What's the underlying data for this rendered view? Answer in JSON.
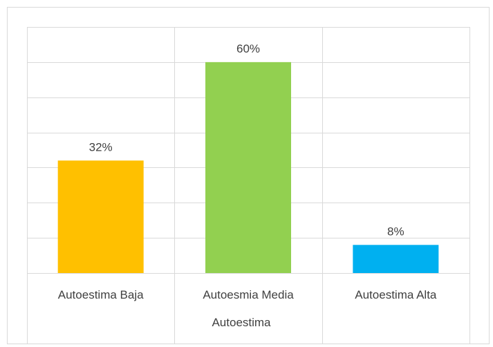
{
  "colors": {
    "gridline": "#d9d9d9",
    "frame_border": "#d9d9d9",
    "text": "#404040",
    "bar_colors": [
      "#ffc000",
      "#92d050",
      "#00b0f0"
    ]
  },
  "chart_data": {
    "type": "bar",
    "categories": [
      "Autoestima Baja",
      "Autoesmia Media",
      "Autoestima Alta"
    ],
    "values": [
      32,
      60,
      8
    ],
    "data_labels": [
      "32%",
      "60%",
      "8%"
    ],
    "title": "",
    "xlabel": "Autoestima",
    "ylabel": "",
    "ylim": [
      0,
      70
    ],
    "y_gridline_step": 10,
    "gridlines": true,
    "vertical_category_separators": true,
    "legend": "none"
  }
}
